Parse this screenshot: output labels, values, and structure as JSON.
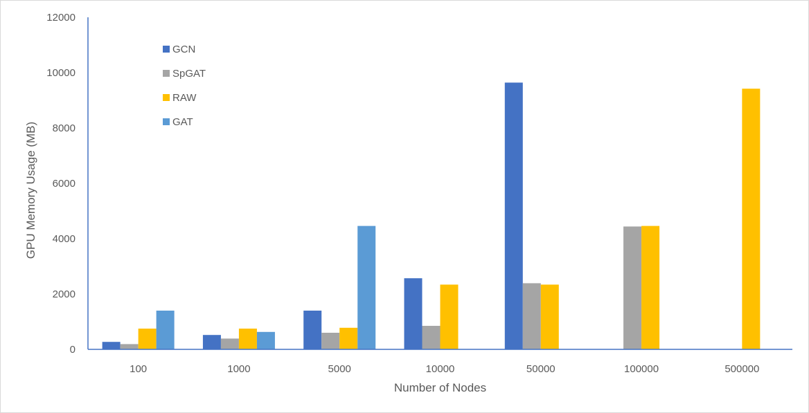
{
  "chart_data": {
    "type": "bar",
    "title": "",
    "xlabel": "Number of Nodes",
    "ylabel": "GPU Memory Usage (MB)",
    "categories": [
      "100",
      "1000",
      "5000",
      "10000",
      "50000",
      "100000",
      "500000"
    ],
    "ylim": [
      0,
      12000
    ],
    "yticks": [
      0,
      2000,
      4000,
      6000,
      8000,
      10000,
      12000
    ],
    "grid": false,
    "legend_position": "top-left",
    "series": [
      {
        "name": "GCN",
        "color": "#4472C4",
        "values": [
          270,
          520,
          1400,
          2570,
          9640,
          null,
          null
        ]
      },
      {
        "name": "SpGAT",
        "color": "#A5A5A5",
        "values": [
          190,
          390,
          600,
          850,
          2390,
          4440,
          null
        ]
      },
      {
        "name": "RAW",
        "color": "#FFC000",
        "values": [
          750,
          750,
          780,
          2340,
          2340,
          4460,
          9420
        ]
      },
      {
        "name": "GAT",
        "color": "#5B9BD5",
        "values": [
          1400,
          630,
          4460,
          null,
          null,
          null,
          null
        ]
      }
    ]
  }
}
